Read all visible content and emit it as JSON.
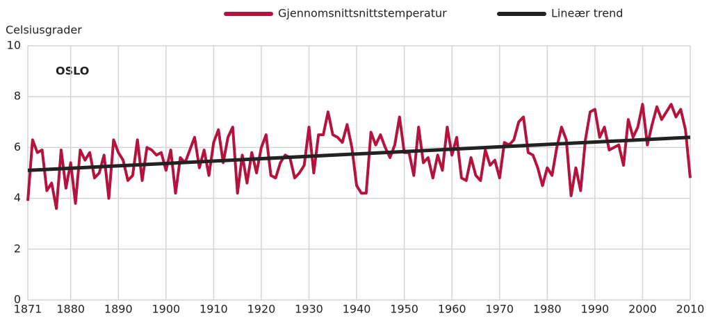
{
  "chart_data": {
    "type": "line",
    "y_label": "Celsiusgrader",
    "annotation": "OSLO",
    "x": [
      1871,
      1872,
      1873,
      1874,
      1875,
      1876,
      1877,
      1878,
      1879,
      1880,
      1881,
      1882,
      1883,
      1884,
      1885,
      1886,
      1887,
      1888,
      1889,
      1890,
      1891,
      1892,
      1893,
      1894,
      1895,
      1896,
      1897,
      1898,
      1899,
      1900,
      1901,
      1902,
      1903,
      1904,
      1905,
      1906,
      1907,
      1908,
      1909,
      1910,
      1911,
      1912,
      1913,
      1914,
      1915,
      1916,
      1917,
      1918,
      1919,
      1920,
      1921,
      1922,
      1923,
      1924,
      1925,
      1926,
      1927,
      1928,
      1929,
      1930,
      1931,
      1932,
      1933,
      1934,
      1935,
      1936,
      1937,
      1938,
      1939,
      1940,
      1941,
      1942,
      1943,
      1944,
      1945,
      1946,
      1947,
      1948,
      1949,
      1950,
      1951,
      1952,
      1953,
      1954,
      1955,
      1956,
      1957,
      1958,
      1959,
      1960,
      1961,
      1962,
      1963,
      1964,
      1965,
      1966,
      1967,
      1968,
      1969,
      1970,
      1971,
      1972,
      1973,
      1974,
      1975,
      1976,
      1977,
      1978,
      1979,
      1980,
      1981,
      1982,
      1983,
      1984,
      1985,
      1986,
      1987,
      1988,
      1989,
      1990,
      1991,
      1992,
      1993,
      1994,
      1995,
      1996,
      1997,
      1998,
      1999,
      2000,
      2001,
      2002,
      2003,
      2004,
      2005,
      2006,
      2007,
      2008,
      2009,
      2010
    ],
    "series": [
      {
        "name": "Gjennomsnittsnittstemperatur",
        "color": "#b5123e",
        "values": [
          3.9,
          6.3,
          5.8,
          5.9,
          4.3,
          4.6,
          3.6,
          5.9,
          4.4,
          5.4,
          3.8,
          5.9,
          5.5,
          5.8,
          4.8,
          5.0,
          5.7,
          4.0,
          6.3,
          5.8,
          5.5,
          4.7,
          4.9,
          6.3,
          4.7,
          6.0,
          5.9,
          5.7,
          5.8,
          5.1,
          5.9,
          4.2,
          5.6,
          5.4,
          5.9,
          6.4,
          5.2,
          5.9,
          4.9,
          6.2,
          6.7,
          5.4,
          6.4,
          6.8,
          4.2,
          5.7,
          4.6,
          5.8,
          5.0,
          6.0,
          6.5,
          4.9,
          4.8,
          5.4,
          5.7,
          5.6,
          4.8,
          5.0,
          5.3,
          6.8,
          5.0,
          6.5,
          6.5,
          7.4,
          6.5,
          6.4,
          6.2,
          6.9,
          6.0,
          4.5,
          4.2,
          4.2,
          6.6,
          6.1,
          6.5,
          6.0,
          5.6,
          6.1,
          7.2,
          5.8,
          5.8,
          4.9,
          6.8,
          5.4,
          5.6,
          4.8,
          5.7,
          5.1,
          6.8,
          5.7,
          6.4,
          4.8,
          4.7,
          5.6,
          4.9,
          4.7,
          5.9,
          5.3,
          5.5,
          4.8,
          6.2,
          6.1,
          6.3,
          7.0,
          7.2,
          5.8,
          5.7,
          5.2,
          4.5,
          5.2,
          4.9,
          6.0,
          6.8,
          6.3,
          4.1,
          5.2,
          4.3,
          6.3,
          7.4,
          7.5,
          6.4,
          6.8,
          5.9,
          6.0,
          6.1,
          5.3,
          7.1,
          6.4,
          6.8,
          7.7,
          6.1,
          6.9,
          7.6,
          7.1,
          7.4,
          7.7,
          7.2,
          7.5,
          6.7,
          4.8
        ]
      },
      {
        "name": "Lineær trend",
        "color": "#222222",
        "x": [
          1871,
          2010
        ],
        "values": [
          5.1,
          6.4
        ]
      }
    ],
    "xlim": [
      1871,
      2010
    ],
    "xticks": [
      1871,
      1880,
      1890,
      1900,
      1910,
      1920,
      1930,
      1940,
      1950,
      1960,
      1970,
      1980,
      1990,
      2000,
      2010
    ],
    "ylim": [
      0,
      10
    ],
    "yticks": [
      0,
      2,
      4,
      6,
      8,
      10
    ],
    "grid": true
  }
}
